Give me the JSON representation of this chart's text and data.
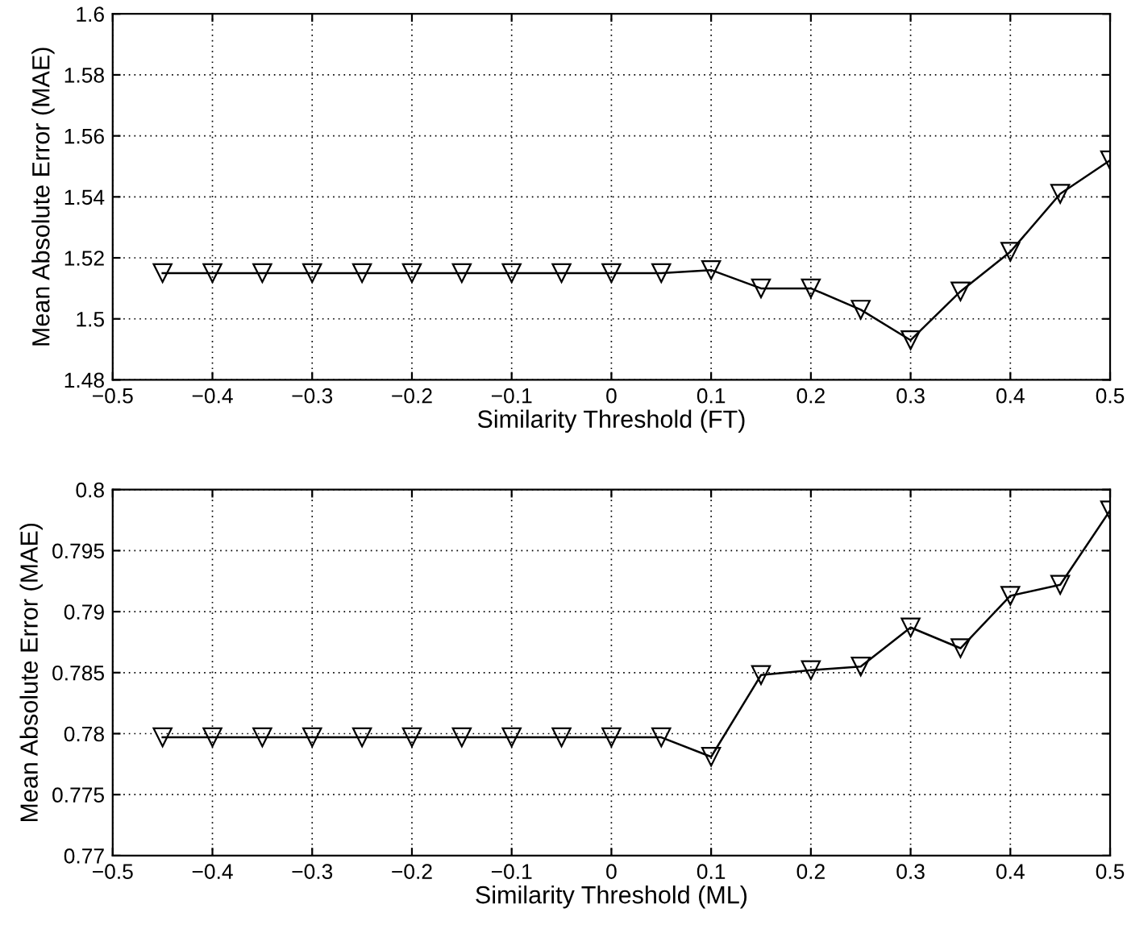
{
  "chart_data": [
    {
      "type": "line",
      "xlabel": "Similarity Threshold (FT)",
      "ylabel": "Mean Absolute Error (MAE)",
      "x": [
        -0.45,
        -0.4,
        -0.35,
        -0.3,
        -0.25,
        -0.2,
        -0.15,
        -0.1,
        -0.05,
        0,
        0.05,
        0.1,
        0.15,
        0.2,
        0.25,
        0.3,
        0.35,
        0.4,
        0.45,
        0.5
      ],
      "series": [
        {
          "color": "#000000",
          "values": [
            1.515,
            1.515,
            1.515,
            1.515,
            1.515,
            1.515,
            1.515,
            1.515,
            1.515,
            1.515,
            1.515,
            1.516,
            1.51,
            1.51,
            1.503,
            1.493,
            1.509,
            1.522,
            1.541,
            1.552
          ]
        }
      ],
      "xlim": [
        -0.5,
        0.5
      ],
      "xticks": [
        -0.5,
        -0.4,
        -0.3,
        -0.2,
        -0.1,
        0,
        0.1,
        0.2,
        0.3,
        0.4,
        0.5
      ],
      "ylim": [
        1.48,
        1.6
      ],
      "yticks": [
        1.48,
        1.5,
        1.52,
        1.54,
        1.56,
        1.58,
        1.6
      ],
      "grid": true,
      "marker": "triangle_down",
      "line_style": "solid"
    },
    {
      "type": "line",
      "xlabel": "Similarity Threshold (ML)",
      "ylabel": "Mean Absolute Error (MAE)",
      "x": [
        -0.45,
        -0.4,
        -0.35,
        -0.3,
        -0.25,
        -0.2,
        -0.15,
        -0.1,
        -0.05,
        0,
        0.05,
        0.1,
        0.15,
        0.2,
        0.25,
        0.3,
        0.35,
        0.4,
        0.45,
        0.5
      ],
      "series": [
        {
          "color": "#000000",
          "values": [
            0.7797,
            0.7797,
            0.7797,
            0.7797,
            0.7797,
            0.7797,
            0.7797,
            0.7797,
            0.7797,
            0.7797,
            0.7797,
            0.7781,
            0.7848,
            0.7852,
            0.7855,
            0.7887,
            0.787,
            0.7913,
            0.7922,
            0.7983
          ]
        }
      ],
      "xlim": [
        -0.5,
        0.5
      ],
      "xticks": [
        -0.5,
        -0.4,
        -0.3,
        -0.2,
        -0.1,
        0,
        0.1,
        0.2,
        0.3,
        0.4,
        0.5
      ],
      "ylim": [
        0.77,
        0.8
      ],
      "yticks": [
        0.77,
        0.775,
        0.78,
        0.785,
        0.79,
        0.795,
        0.8
      ],
      "grid": true,
      "marker": "triangle_down",
      "line_style": "solid"
    }
  ]
}
